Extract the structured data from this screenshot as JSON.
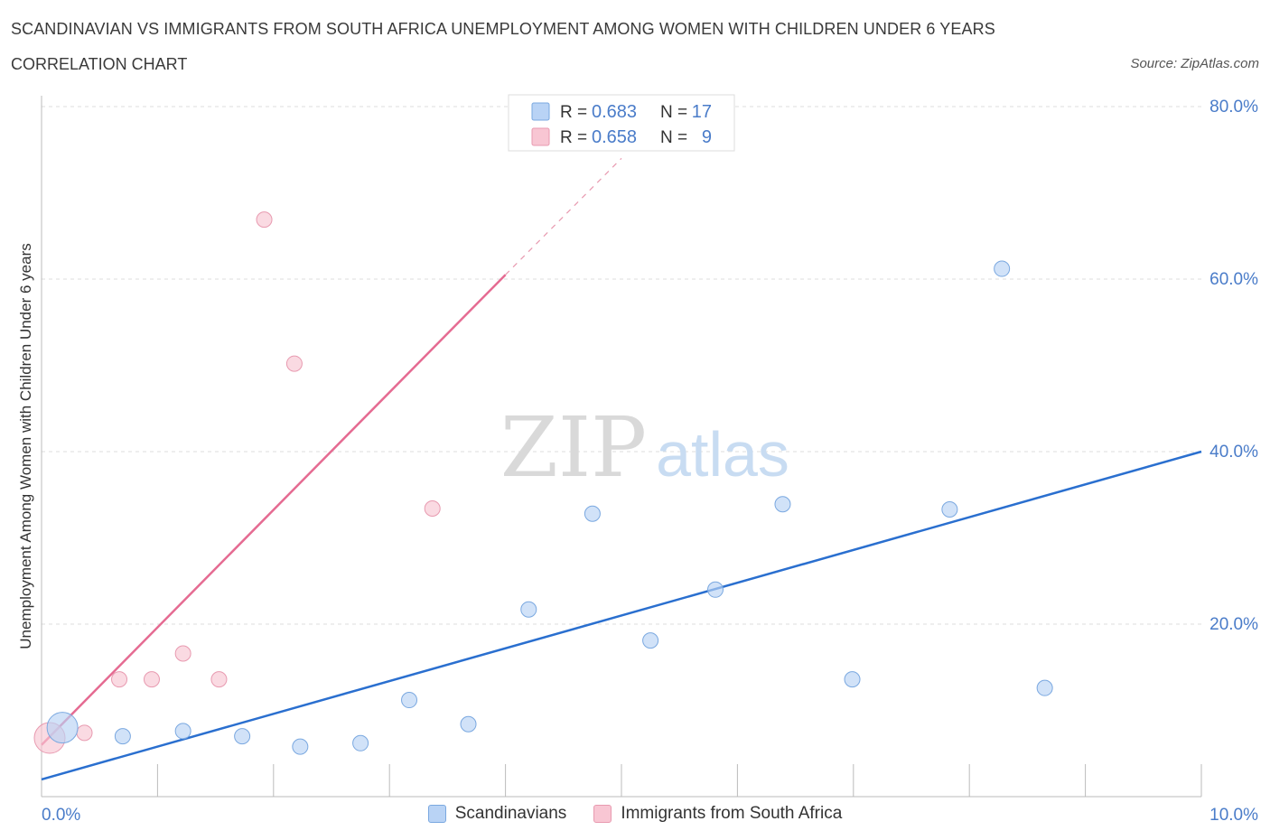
{
  "header": {
    "title": "SCANDINAVIAN VS IMMIGRANTS FROM SOUTH AFRICA UNEMPLOYMENT AMONG WOMEN WITH CHILDREN UNDER 6 YEARS",
    "subtitle": "CORRELATION CHART",
    "source": "Source: ZipAtlas.com"
  },
  "watermark": {
    "zip": "ZIP",
    "atlas": "atlas"
  },
  "colors": {
    "blue_fill": "#b9d3f5",
    "blue_stroke": "#7aa8e0",
    "blue_line": "#2a6fcf",
    "pink_fill": "#f8c6d3",
    "pink_stroke": "#e89ab0",
    "pink_line": "#e56b92",
    "axis_label": "#4a7cc9",
    "grid": "#dddddd"
  },
  "legend": {
    "rows": [
      {
        "r_label": "R =",
        "r_value": "0.683",
        "n_label": "N =",
        "n_value": "17"
      },
      {
        "r_label": "R =",
        "r_value": "0.658",
        "n_label": "N =",
        "n_value": "9"
      }
    ]
  },
  "chart_data": {
    "type": "scatter",
    "ylabel": "Unemployment Among Women with Children Under 6 years",
    "xlim": [
      0,
      10
    ],
    "ylim": [
      0,
      80
    ],
    "x_tick_labels": [
      "0.0%",
      "10.0%"
    ],
    "y_tick_labels": [
      "20.0%",
      "40.0%",
      "60.0%",
      "80.0%"
    ],
    "y_ticks": [
      20,
      40,
      60,
      80
    ],
    "grid": true,
    "legend_position": "top-center",
    "series": [
      {
        "name": "Scandinavians",
        "color": "#b9d3f5",
        "points": [
          {
            "x": 0.18,
            "y": 8.0,
            "big": true
          },
          {
            "x": 0.7,
            "y": 7.0
          },
          {
            "x": 1.22,
            "y": 7.6
          },
          {
            "x": 1.73,
            "y": 7.0
          },
          {
            "x": 2.23,
            "y": 5.8
          },
          {
            "x": 2.75,
            "y": 6.2
          },
          {
            "x": 3.17,
            "y": 11.2
          },
          {
            "x": 3.68,
            "y": 8.4
          },
          {
            "x": 4.2,
            "y": 21.7
          },
          {
            "x": 4.75,
            "y": 32.8
          },
          {
            "x": 5.25,
            "y": 18.1
          },
          {
            "x": 5.81,
            "y": 24.0
          },
          {
            "x": 6.39,
            "y": 33.9
          },
          {
            "x": 6.99,
            "y": 13.6
          },
          {
            "x": 7.83,
            "y": 33.3
          },
          {
            "x": 8.28,
            "y": 61.2
          },
          {
            "x": 8.65,
            "y": 12.6
          }
        ],
        "trend": {
          "x1": 0.0,
          "y1": 2.0,
          "x2": 10.0,
          "y2": 40.0
        }
      },
      {
        "name": "Immigrants from South Africa",
        "color": "#f8c6d3",
        "points": [
          {
            "x": 0.07,
            "y": 6.8,
            "big": true
          },
          {
            "x": 0.37,
            "y": 7.4
          },
          {
            "x": 0.67,
            "y": 13.6
          },
          {
            "x": 0.95,
            "y": 13.6
          },
          {
            "x": 1.22,
            "y": 16.6
          },
          {
            "x": 1.53,
            "y": 13.6
          },
          {
            "x": 1.92,
            "y": 66.9
          },
          {
            "x": 2.18,
            "y": 50.2
          },
          {
            "x": 3.37,
            "y": 33.4
          }
        ],
        "trend": {
          "x1": 0.0,
          "y1": 6.0,
          "x2": 4.0,
          "y2": 60.5
        },
        "trend_dashed": {
          "x1": 4.0,
          "y1": 60.5,
          "x2": 5.0,
          "y2": 74.0
        }
      }
    ]
  }
}
